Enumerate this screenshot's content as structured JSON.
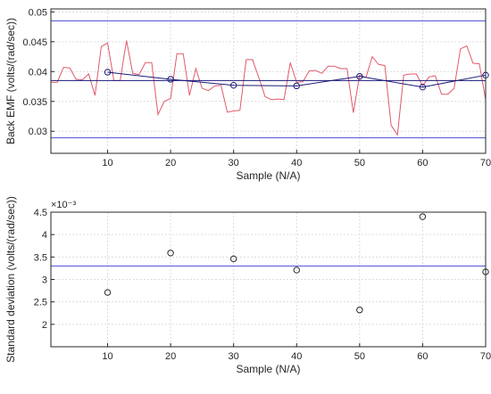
{
  "chart_data": [
    {
      "type": "line",
      "xlabel": "Sample (N/A)",
      "ylabel": "Back EMF (volts/(rad/sec))",
      "xlim": [
        1,
        70
      ],
      "ylim": [
        0.0263,
        0.0505
      ],
      "xticks": [
        10,
        20,
        30,
        40,
        50,
        60,
        70
      ],
      "yticks": [
        0.03,
        0.035,
        0.04,
        0.045,
        0.05
      ],
      "ytick_labels": [
        "0.03",
        "0.035",
        "0.04",
        "0.045",
        "0.05"
      ],
      "grid": true,
      "series": [
        {
          "color": "#e05a6a",
          "x": [
            1,
            2,
            3,
            4,
            5,
            6,
            7,
            8,
            9,
            10,
            11,
            12,
            13,
            14,
            15,
            16,
            17,
            18,
            19,
            20,
            21,
            22,
            23,
            24,
            25,
            26,
            27,
            28,
            29,
            30,
            31,
            32,
            33,
            34,
            35,
            36,
            37,
            38,
            39,
            40,
            41,
            42,
            43,
            44,
            45,
            46,
            47,
            48,
            49,
            50,
            51,
            52,
            53,
            54,
            55,
            56,
            57,
            58,
            59,
            60,
            61,
            62,
            63,
            64,
            65,
            66,
            67,
            68,
            69,
            70
          ],
          "y": [
            0.0382,
            0.0382,
            0.0407,
            0.0406,
            0.0387,
            0.0386,
            0.0396,
            0.036,
            0.0442,
            0.0448,
            0.0385,
            0.0385,
            0.0452,
            0.0397,
            0.0395,
            0.0415,
            0.0415,
            0.0328,
            0.035,
            0.0355,
            0.043,
            0.043,
            0.036,
            0.0405,
            0.0372,
            0.0368,
            0.0376,
            0.0377,
            0.0332,
            0.0334,
            0.0335,
            0.042,
            0.042,
            0.039,
            0.0358,
            0.0353,
            0.0354,
            0.0353,
            0.0415,
            0.0382,
            0.0383,
            0.0401,
            0.0402,
            0.0397,
            0.0409,
            0.0409,
            0.0405,
            0.0405,
            0.0331,
            0.0394,
            0.039,
            0.0425,
            0.0412,
            0.041,
            0.031,
            0.0294,
            0.0394,
            0.0396,
            0.0396,
            0.0376,
            0.0391,
            0.0393,
            0.0362,
            0.0362,
            0.0372,
            0.0438,
            0.0443,
            0.0414,
            0.0413,
            0.0353
          ]
        },
        {
          "color": "#1a1a7a",
          "x": [
            10,
            20,
            30,
            40,
            50,
            60,
            70
          ],
          "y": [
            0.0399,
            0.0387,
            0.0377,
            0.0376,
            0.0392,
            0.0374,
            0.0394
          ],
          "markers": true
        },
        {
          "color": "#1a1a7a",
          "x": [
            1,
            70
          ],
          "y": [
            0.0385,
            0.0385
          ]
        },
        {
          "color": "#4b4bd6",
          "x": [
            1,
            70
          ],
          "y": [
            0.0485,
            0.0485
          ]
        },
        {
          "color": "#4b4bd6",
          "x": [
            1,
            70
          ],
          "y": [
            0.0289,
            0.0289
          ]
        }
      ]
    },
    {
      "type": "scatter",
      "xlabel": "Sample (N/A)",
      "ylabel": "Standard deviation (volts/(rad/sec))",
      "exponent_label": "×10⁻³",
      "xlim": [
        1,
        70
      ],
      "ylim": [
        1.5,
        4.5
      ],
      "xticks": [
        10,
        20,
        30,
        40,
        50,
        60,
        70
      ],
      "yticks": [
        2,
        2.5,
        3,
        3.5,
        4,
        4.5
      ],
      "ytick_labels": [
        "2",
        "2.5",
        "3",
        "3.5",
        "4",
        "4.5"
      ],
      "grid": true,
      "series": [
        {
          "color": "#262626",
          "x": [
            10,
            20,
            30,
            40,
            50,
            60,
            70
          ],
          "y": [
            2.71,
            3.59,
            3.46,
            3.21,
            2.32,
            4.4,
            3.17
          ],
          "markers": true
        },
        {
          "color": "#4b4bd6",
          "x": [
            1,
            70
          ],
          "y": [
            3.3,
            3.3
          ]
        }
      ]
    }
  ]
}
